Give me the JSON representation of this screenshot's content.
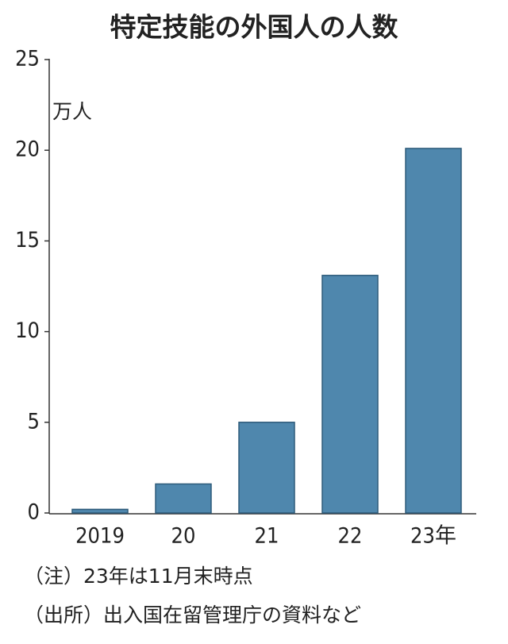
{
  "chart_data": {
    "type": "bar",
    "title": "特定技能の外国人の人数",
    "y_unit": "万人",
    "categories": [
      "2019",
      "20",
      "21",
      "22",
      "23年"
    ],
    "values": [
      0.2,
      1.6,
      5.0,
      13.1,
      20.1
    ],
    "color": "#4f87ad",
    "ylim": [
      0,
      25
    ],
    "yticks": [
      0,
      5,
      10,
      15,
      20,
      25
    ],
    "grid": false,
    "notes": [
      "（注）23年は11月末時点",
      "（出所）出入国在留管理庁の資料など"
    ]
  }
}
